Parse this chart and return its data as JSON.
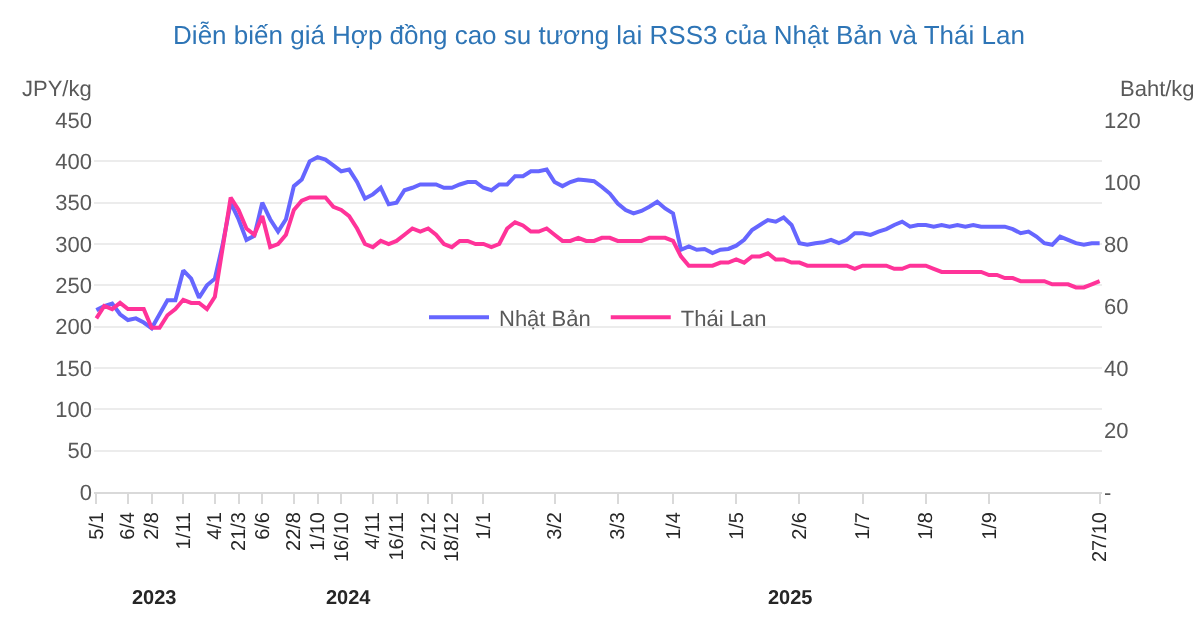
{
  "chart_data": {
    "type": "line",
    "title": "Diễn biến giá Hợp đồng cao su tương lai RSS3 của Nhật Bản và Thái Lan",
    "ylabel": "JPY/kg",
    "y2label": "Baht/kg",
    "categories": [
      "5/1",
      null,
      null,
      null,
      "6/4",
      null,
      null,
      "2/8",
      null,
      null,
      null,
      "1/11",
      null,
      null,
      null,
      "4/1",
      null,
      null,
      "21/3",
      null,
      null,
      "6/6",
      null,
      null,
      null,
      "22/8",
      null,
      null,
      "1/10",
      null,
      null,
      "16/10",
      null,
      null,
      null,
      "4/11",
      null,
      null,
      "16/11",
      null,
      null,
      null,
      "2/12",
      null,
      null,
      "18/12",
      null,
      null,
      null,
      "1/1",
      null,
      null,
      null,
      null,
      null,
      null,
      null,
      null,
      "3/2",
      null,
      null,
      null,
      null,
      null,
      null,
      null,
      "3/3",
      null,
      null,
      null,
      null,
      null,
      null,
      "1/4",
      null,
      null,
      null,
      null,
      null,
      null,
      null,
      "1/5",
      null,
      null,
      null,
      null,
      null,
      null,
      null,
      "2/6",
      null,
      null,
      null,
      null,
      null,
      null,
      null,
      "1/7",
      null,
      null,
      null,
      null,
      null,
      null,
      null,
      "1/8",
      null,
      null,
      null,
      null,
      null,
      null,
      null,
      "1/9",
      null,
      null,
      null,
      null,
      null,
      null,
      null,
      null,
      null,
      null,
      null,
      null,
      null,
      "27/10"
    ],
    "series": [
      {
        "name": "Nhật Bản",
        "color": "#6666ff",
        "values": [
          220,
          225,
          228,
          215,
          208,
          210,
          205,
          198,
          215,
          232,
          232,
          268,
          258,
          235,
          250,
          258,
          300,
          350,
          330,
          305,
          310,
          350,
          330,
          315,
          330,
          370,
          378,
          400,
          405,
          402,
          395,
          388,
          390,
          375,
          355,
          360,
          368,
          348,
          350,
          365,
          368,
          372,
          372,
          372,
          368,
          368,
          372,
          375,
          375,
          368,
          365,
          372,
          372,
          382,
          382,
          388,
          388,
          390,
          375,
          370,
          375,
          378,
          377,
          376,
          369,
          361,
          349,
          341,
          337,
          340,
          345,
          351,
          343,
          337,
          293,
          297,
          293,
          294,
          289,
          293,
          294,
          298,
          305,
          317,
          323,
          329,
          327,
          332,
          323,
          301,
          299,
          301,
          302,
          305,
          301,
          305,
          313,
          313,
          311,
          315,
          318,
          323,
          327,
          321,
          323,
          323,
          321,
          323,
          321,
          323,
          321,
          323,
          321,
          321,
          321,
          321,
          318,
          313,
          315,
          309,
          301,
          299,
          309,
          305,
          301,
          299,
          301,
          301
        ]
      },
      {
        "name": "Thái Lan",
        "color": "#ff3399",
        "axis": "y2",
        "values": [
          56,
          60,
          59,
          61,
          59,
          59,
          59,
          53,
          53,
          57,
          59,
          62,
          61,
          61,
          59,
          63,
          79,
          95,
          91,
          85,
          83,
          89,
          79,
          80,
          83,
          91,
          94,
          95,
          95,
          95,
          92,
          91,
          89,
          85,
          80,
          79,
          81,
          80,
          81,
          83,
          85,
          84,
          85,
          83,
          80,
          79,
          81,
          81,
          80,
          80,
          79,
          80,
          85,
          87,
          86,
          84,
          84,
          85,
          83,
          81,
          81,
          82,
          81,
          81,
          82,
          82,
          81,
          81,
          81,
          81,
          82,
          82,
          82,
          81,
          76,
          73,
          73,
          73,
          73,
          74,
          74,
          75,
          74,
          76,
          76,
          77,
          75,
          75,
          74,
          74,
          73,
          73,
          73,
          73,
          73,
          73,
          72,
          73,
          73,
          73,
          73,
          72,
          72,
          73,
          73,
          73,
          72,
          71,
          71,
          71,
          71,
          71,
          71,
          70,
          70,
          69,
          69,
          68,
          68,
          68,
          68,
          67,
          67,
          67,
          66,
          66,
          67,
          68
        ]
      }
    ],
    "ylim": [
      0,
      450
    ],
    "yticks": [
      0,
      50,
      100,
      150,
      200,
      250,
      300,
      350,
      400,
      450
    ],
    "y2lim": [
      0,
      120
    ],
    "y2ticks": [
      {
        "value": 0,
        "label": "-"
      },
      20,
      40,
      60,
      80,
      100,
      120
    ],
    "grid": "y",
    "legend": "center",
    "line_style": "solid",
    "marker": "none",
    "annotations": [
      "2023",
      "2024",
      "2025"
    ]
  }
}
